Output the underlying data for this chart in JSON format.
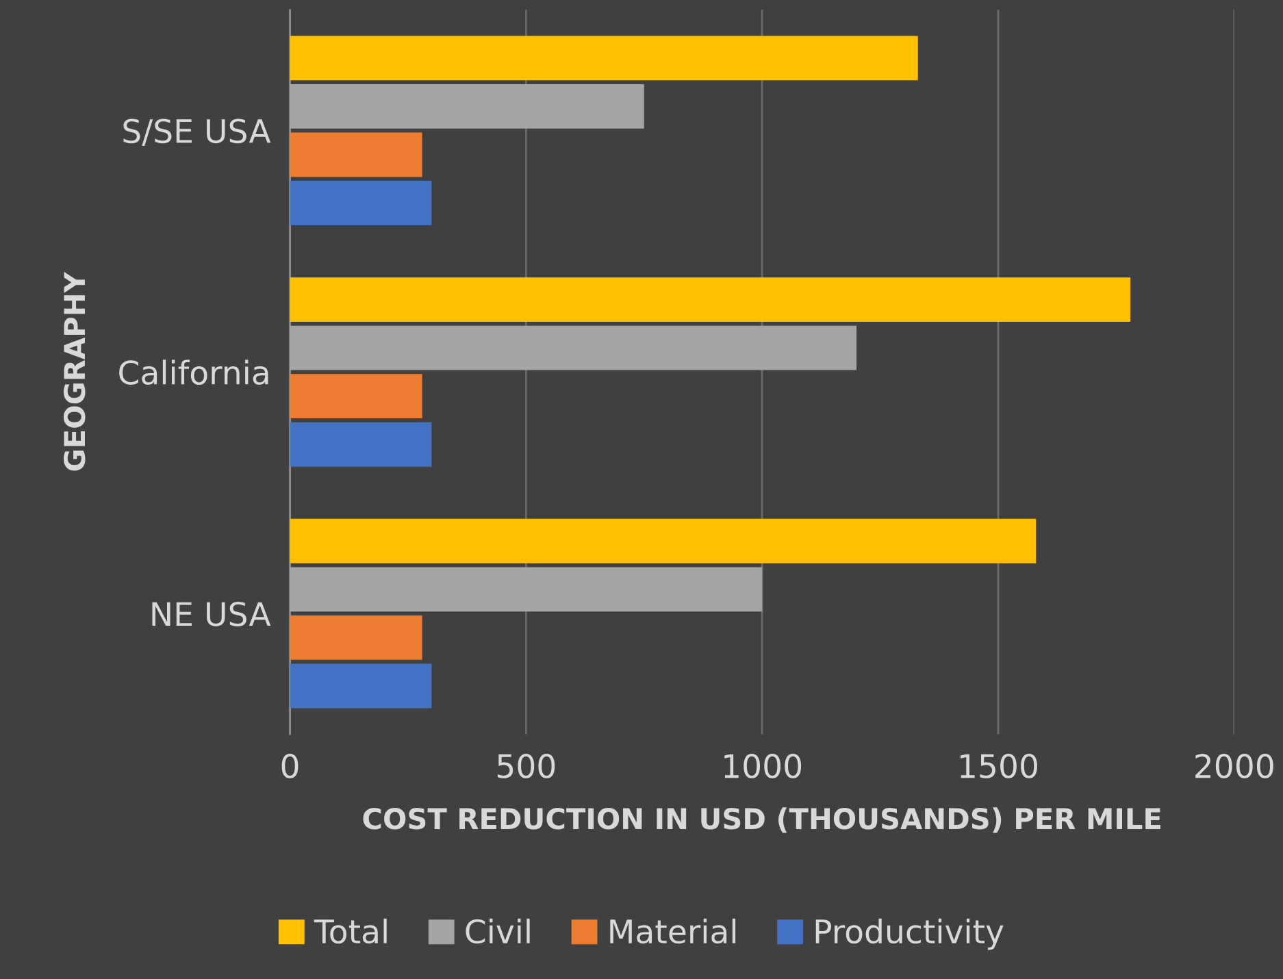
{
  "chart_data": {
    "type": "bar",
    "orientation": "horizontal",
    "xlabel": "COST REDUCTION IN USD (THOUSANDS) PER MILE",
    "ylabel": "GEOGRAPHY",
    "categories": [
      "S/SE USA",
      "California",
      "NE USA"
    ],
    "series": [
      {
        "name": "Total",
        "color": "#ffc000",
        "values": [
          1330,
          1780,
          1580
        ]
      },
      {
        "name": "Civil",
        "color": "#a5a5a5",
        "values": [
          750,
          1200,
          1000
        ]
      },
      {
        "name": "Material",
        "color": "#ed7d31",
        "values": [
          280,
          280,
          280
        ]
      },
      {
        "name": "Productivity",
        "color": "#4472c4",
        "values": [
          300,
          300,
          300
        ]
      }
    ],
    "xlim": [
      0,
      2000
    ],
    "xticks": [
      0,
      500,
      1000,
      1500,
      2000
    ],
    "grid": "x",
    "legend": "bottom"
  }
}
